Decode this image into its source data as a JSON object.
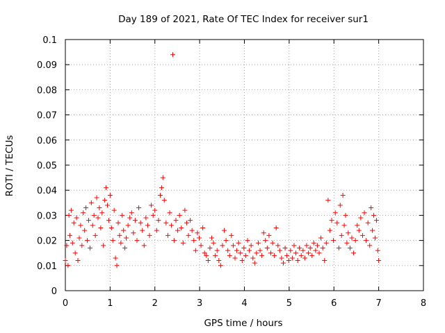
{
  "chart_data": {
    "type": "scatter",
    "title": "Day 189 of 2021, Rate Of TEC Index for receiver sur1",
    "xlabel": "GPS time / hours",
    "ylabel": "ROTI / TECUs",
    "xlim": [
      0,
      8
    ],
    "ylim": [
      0,
      0.1
    ],
    "xticks": [
      "0",
      "1",
      "2",
      "3",
      "4",
      "5",
      "6",
      "7",
      "8"
    ],
    "yticks": [
      "0",
      "0.01",
      "0.02",
      "0.03",
      "0.04",
      "0.05",
      "0.06",
      "0.07",
      "0.08",
      "0.09",
      "0.1"
    ],
    "grid": true,
    "marker": "plus",
    "color": "#ff0000",
    "series": [
      {
        "name": "sur1",
        "points": [
          [
            0.0,
            0.012
          ],
          [
            0.03,
            0.018
          ],
          [
            0.06,
            0.01
          ],
          [
            0.08,
            0.03
          ],
          [
            0.1,
            0.022
          ],
          [
            0.13,
            0.032
          ],
          [
            0.16,
            0.019
          ],
          [
            0.19,
            0.027
          ],
          [
            0.22,
            0.015
          ],
          [
            0.25,
            0.029
          ],
          [
            0.28,
            0.012
          ],
          [
            0.31,
            0.021
          ],
          [
            0.34,
            0.026
          ],
          [
            0.37,
            0.018
          ],
          [
            0.4,
            0.031
          ],
          [
            0.43,
            0.024
          ],
          [
            0.46,
            0.033
          ],
          [
            0.49,
            0.02
          ],
          [
            0.52,
            0.028
          ],
          [
            0.55,
            0.017
          ],
          [
            0.58,
            0.035
          ],
          [
            0.61,
            0.026
          ],
          [
            0.64,
            0.03
          ],
          [
            0.67,
            0.022
          ],
          [
            0.7,
            0.037
          ],
          [
            0.73,
            0.029
          ],
          [
            0.76,
            0.033
          ],
          [
            0.79,
            0.025
          ],
          [
            0.82,
            0.031
          ],
          [
            0.85,
            0.018
          ],
          [
            0.88,
            0.036
          ],
          [
            0.91,
            0.041
          ],
          [
            0.94,
            0.034
          ],
          [
            0.97,
            0.028
          ],
          [
            1.0,
            0.038
          ],
          [
            1.03,
            0.025
          ],
          [
            1.06,
            0.02
          ],
          [
            1.09,
            0.032
          ],
          [
            1.12,
            0.013
          ],
          [
            1.15,
            0.01
          ],
          [
            1.18,
            0.027
          ],
          [
            1.21,
            0.022
          ],
          [
            1.24,
            0.019
          ],
          [
            1.27,
            0.03
          ],
          [
            1.3,
            0.024
          ],
          [
            1.33,
            0.017
          ],
          [
            1.36,
            0.021
          ],
          [
            1.4,
            0.026
          ],
          [
            1.44,
            0.029
          ],
          [
            1.48,
            0.031
          ],
          [
            1.52,
            0.023
          ],
          [
            1.56,
            0.028
          ],
          [
            1.6,
            0.02
          ],
          [
            1.64,
            0.033
          ],
          [
            1.68,
            0.027
          ],
          [
            1.72,
            0.024
          ],
          [
            1.76,
            0.018
          ],
          [
            1.8,
            0.029
          ],
          [
            1.84,
            0.026
          ],
          [
            1.88,
            0.022
          ],
          [
            1.92,
            0.034
          ],
          [
            1.96,
            0.03
          ],
          [
            2.0,
            0.032
          ],
          [
            2.04,
            0.024
          ],
          [
            2.08,
            0.028
          ],
          [
            2.12,
            0.038
          ],
          [
            2.15,
            0.041
          ],
          [
            2.18,
            0.045
          ],
          [
            2.21,
            0.036
          ],
          [
            2.25,
            0.027
          ],
          [
            2.29,
            0.022
          ],
          [
            2.33,
            0.031
          ],
          [
            2.37,
            0.026
          ],
          [
            2.4,
            0.094
          ],
          [
            2.43,
            0.02
          ],
          [
            2.47,
            0.028
          ],
          [
            2.51,
            0.024
          ],
          [
            2.55,
            0.03
          ],
          [
            2.59,
            0.025
          ],
          [
            2.63,
            0.019
          ],
          [
            2.67,
            0.032
          ],
          [
            2.71,
            0.027
          ],
          [
            2.75,
            0.022
          ],
          [
            2.79,
            0.028
          ],
          [
            2.83,
            0.024
          ],
          [
            2.87,
            0.02
          ],
          [
            2.91,
            0.016
          ],
          [
            2.95,
            0.023
          ],
          [
            2.99,
            0.021
          ],
          [
            3.03,
            0.018
          ],
          [
            3.07,
            0.025
          ],
          [
            3.11,
            0.015
          ],
          [
            3.15,
            0.014
          ],
          [
            3.19,
            0.012
          ],
          [
            3.23,
            0.017
          ],
          [
            3.27,
            0.021
          ],
          [
            3.31,
            0.019
          ],
          [
            3.35,
            0.014
          ],
          [
            3.39,
            0.016
          ],
          [
            3.43,
            0.012
          ],
          [
            3.47,
            0.01
          ],
          [
            3.51,
            0.018
          ],
          [
            3.55,
            0.024
          ],
          [
            3.59,
            0.02
          ],
          [
            3.63,
            0.016
          ],
          [
            3.67,
            0.014
          ],
          [
            3.71,
            0.022
          ],
          [
            3.75,
            0.018
          ],
          [
            3.79,
            0.013
          ],
          [
            3.83,
            0.016
          ],
          [
            3.87,
            0.019
          ],
          [
            3.91,
            0.015
          ],
          [
            3.95,
            0.012
          ],
          [
            3.99,
            0.017
          ],
          [
            4.03,
            0.014
          ],
          [
            4.07,
            0.02
          ],
          [
            4.11,
            0.016
          ],
          [
            4.15,
            0.018
          ],
          [
            4.19,
            0.013
          ],
          [
            4.23,
            0.011
          ],
          [
            4.27,
            0.015
          ],
          [
            4.31,
            0.019
          ],
          [
            4.35,
            0.016
          ],
          [
            4.39,
            0.014
          ],
          [
            4.43,
            0.023
          ],
          [
            4.47,
            0.02
          ],
          [
            4.51,
            0.017
          ],
          [
            4.55,
            0.022
          ],
          [
            4.59,
            0.015
          ],
          [
            4.63,
            0.019
          ],
          [
            4.67,
            0.014
          ],
          [
            4.71,
            0.025
          ],
          [
            4.75,
            0.018
          ],
          [
            4.79,
            0.016
          ],
          [
            4.83,
            0.013
          ],
          [
            4.87,
            0.011
          ],
          [
            4.91,
            0.017
          ],
          [
            4.95,
            0.014
          ],
          [
            4.99,
            0.012
          ],
          [
            5.03,
            0.016
          ],
          [
            5.07,
            0.013
          ],
          [
            5.11,
            0.018
          ],
          [
            5.15,
            0.015
          ],
          [
            5.19,
            0.012
          ],
          [
            5.23,
            0.017
          ],
          [
            5.27,
            0.014
          ],
          [
            5.31,
            0.016
          ],
          [
            5.35,
            0.013
          ],
          [
            5.39,
            0.018
          ],
          [
            5.43,
            0.015
          ],
          [
            5.47,
            0.017
          ],
          [
            5.51,
            0.014
          ],
          [
            5.55,
            0.019
          ],
          [
            5.59,
            0.016
          ],
          [
            5.63,
            0.018
          ],
          [
            5.67,
            0.015
          ],
          [
            5.71,
            0.021
          ],
          [
            5.75,
            0.017
          ],
          [
            5.79,
            0.012
          ],
          [
            5.83,
            0.019
          ],
          [
            5.87,
            0.036
          ],
          [
            5.91,
            0.024
          ],
          [
            5.95,
            0.028
          ],
          [
            5.99,
            0.02
          ],
          [
            6.03,
            0.031
          ],
          [
            6.07,
            0.027
          ],
          [
            6.11,
            0.017
          ],
          [
            6.14,
            0.034
          ],
          [
            6.17,
            0.022
          ],
          [
            6.2,
            0.038
          ],
          [
            6.23,
            0.026
          ],
          [
            6.26,
            0.03
          ],
          [
            6.29,
            0.019
          ],
          [
            6.32,
            0.023
          ],
          [
            6.36,
            0.017
          ],
          [
            6.4,
            0.021
          ],
          [
            6.44,
            0.015
          ],
          [
            6.48,
            0.02
          ],
          [
            6.52,
            0.026
          ],
          [
            6.56,
            0.024
          ],
          [
            6.6,
            0.029
          ],
          [
            6.64,
            0.022
          ],
          [
            6.68,
            0.031
          ],
          [
            6.72,
            0.02
          ],
          [
            6.76,
            0.027
          ],
          [
            6.8,
            0.018
          ],
          [
            6.83,
            0.033
          ],
          [
            6.86,
            0.024
          ],
          [
            6.89,
            0.03
          ],
          [
            6.92,
            0.021
          ],
          [
            6.95,
            0.028
          ],
          [
            6.98,
            0.016
          ],
          [
            7.0,
            0.012
          ]
        ]
      }
    ]
  }
}
